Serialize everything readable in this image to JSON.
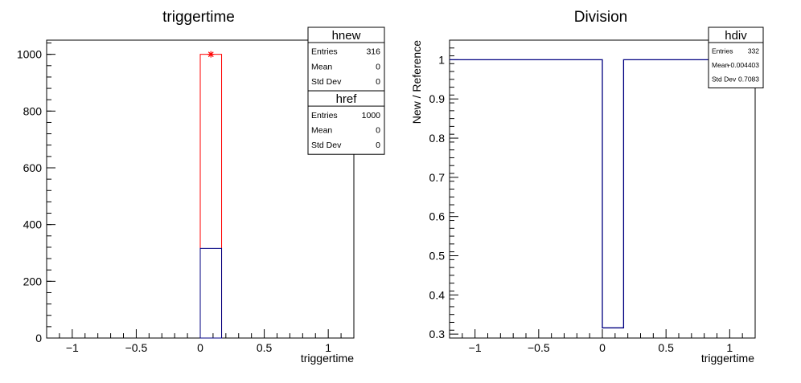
{
  "chart_data": [
    {
      "type": "bar",
      "title": "triggertime",
      "xlabel": "triggertime",
      "ylabel": "",
      "xlim": [
        -1.2,
        1.2
      ],
      "ylim": [
        0,
        1050
      ],
      "x_ticks": [
        -1,
        -0.5,
        0,
        0.5,
        1
      ],
      "x_tick_labels": [
        "−1",
        "−0.5",
        "0",
        "0.5",
        "1"
      ],
      "y_ticks": [
        0,
        200,
        400,
        600,
        800,
        1000
      ],
      "y_tick_labels": [
        "0",
        "200",
        "400",
        "600",
        "800",
        "1000"
      ],
      "bin_edges": [
        0,
        0.1667
      ],
      "series": [
        {
          "name": "href",
          "color": "#ff0000",
          "values": [
            1000
          ]
        },
        {
          "name": "hnew",
          "color": "#000080",
          "values": [
            316
          ]
        }
      ],
      "marker": {
        "x": 0.0833,
        "y": 1000,
        "color": "#ff0000"
      },
      "stats_boxes": [
        {
          "title": "hnew",
          "rows": [
            {
              "label": "Entries",
              "value": "316"
            },
            {
              "label": "Mean",
              "value": "0"
            },
            {
              "label": "Std Dev",
              "value": "0"
            }
          ]
        },
        {
          "title": "href",
          "rows": [
            {
              "label": "Entries",
              "value": "1000"
            },
            {
              "label": "Mean",
              "value": "0"
            },
            {
              "label": "Std Dev",
              "value": "0"
            }
          ]
        }
      ]
    },
    {
      "type": "line",
      "title": "Division",
      "xlabel": "triggertime",
      "ylabel": "New / Reference",
      "xlim": [
        -1.2,
        1.2
      ],
      "ylim": [
        0.29,
        1.05
      ],
      "x_ticks": [
        -1,
        -0.5,
        0,
        0.5,
        1
      ],
      "x_tick_labels": [
        "−1",
        "−0.5",
        "0",
        "0.5",
        "1"
      ],
      "y_ticks": [
        0.3,
        0.4,
        0.5,
        0.6,
        0.7,
        0.8,
        0.9,
        1
      ],
      "y_tick_labels": [
        "0.3",
        "0.4",
        "0.5",
        "0.6",
        "0.7",
        "0.8",
        "0.9",
        "1"
      ],
      "series": [
        {
          "name": "hdiv",
          "color": "#000080",
          "x": [
            -1.2,
            0,
            0,
            0.1667,
            0.1667,
            1.2
          ],
          "y": [
            1,
            1,
            0.316,
            0.316,
            1,
            1
          ]
        }
      ],
      "stats_boxes": [
        {
          "title": "hdiv",
          "rows": [
            {
              "label": "Entries",
              "value": "332"
            },
            {
              "label": "Mean",
              "value": "−0.004403"
            },
            {
              "label": "Std Dev",
              "value": "0.7083"
            }
          ]
        }
      ]
    }
  ]
}
